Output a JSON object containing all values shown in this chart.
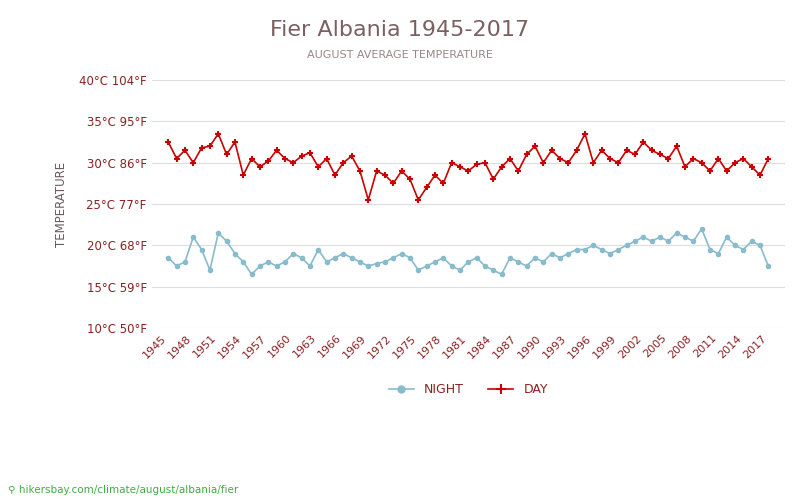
{
  "title": "Fier Albania 1945-2017",
  "subtitle": "AUGUST AVERAGE TEMPERATURE",
  "ylabel": "TEMPERATURE",
  "watermark": "hikersbay.com/climate/august/albania/fier",
  "ylim": [
    10,
    40
  ],
  "yticks_c": [
    10,
    15,
    20,
    25,
    30,
    35,
    40
  ],
  "yticks_f": [
    50,
    59,
    68,
    77,
    86,
    95,
    104
  ],
  "background_color": "#ffffff",
  "grid_color": "#dddddd",
  "title_color": "#7a6060",
  "subtitle_color": "#9a8888",
  "ylabel_color": "#6a5a5a",
  "tick_color": "#8b2222",
  "day_color": "#cc0000",
  "night_color": "#88bbcc",
  "years": [
    1945,
    1946,
    1947,
    1948,
    1949,
    1950,
    1951,
    1952,
    1953,
    1954,
    1955,
    1956,
    1957,
    1958,
    1959,
    1960,
    1961,
    1962,
    1963,
    1964,
    1965,
    1966,
    1967,
    1968,
    1969,
    1970,
    1971,
    1972,
    1973,
    1974,
    1975,
    1976,
    1977,
    1978,
    1979,
    1980,
    1981,
    1982,
    1983,
    1984,
    1985,
    1986,
    1987,
    1988,
    1989,
    1990,
    1991,
    1992,
    1993,
    1994,
    1995,
    1996,
    1997,
    1998,
    1999,
    2000,
    2001,
    2002,
    2003,
    2004,
    2005,
    2006,
    2007,
    2008,
    2009,
    2010,
    2011,
    2012,
    2013,
    2014,
    2015,
    2016,
    2017
  ],
  "day_temps": [
    32.5,
    30.5,
    31.5,
    30.0,
    31.8,
    32.0,
    33.5,
    31.0,
    32.5,
    28.5,
    30.5,
    29.5,
    30.2,
    31.5,
    30.5,
    30.0,
    30.8,
    31.2,
    29.5,
    30.5,
    28.5,
    30.0,
    30.8,
    29.0,
    25.5,
    29.0,
    28.5,
    27.5,
    29.0,
    28.0,
    25.5,
    27.0,
    28.5,
    27.5,
    30.0,
    29.5,
    29.0,
    29.8,
    30.0,
    28.0,
    29.5,
    30.5,
    29.0,
    31.0,
    32.0,
    30.0,
    31.5,
    30.5,
    30.0,
    31.5,
    33.5,
    30.0,
    31.5,
    30.5,
    30.0,
    31.5,
    31.0,
    32.5,
    31.5,
    31.0,
    30.5,
    32.0,
    29.5,
    30.5,
    30.0,
    29.0,
    30.5,
    29.0,
    30.0,
    30.5,
    29.5,
    28.5,
    30.5
  ],
  "night_temps": [
    18.5,
    17.5,
    18.0,
    21.0,
    19.5,
    17.0,
    21.5,
    20.5,
    19.0,
    18.0,
    16.5,
    17.5,
    18.0,
    17.5,
    18.0,
    19.0,
    18.5,
    17.5,
    19.5,
    18.0,
    18.5,
    19.0,
    18.5,
    18.0,
    17.5,
    17.8,
    18.0,
    18.5,
    19.0,
    18.5,
    17.0,
    17.5,
    18.0,
    18.5,
    17.5,
    17.0,
    18.0,
    18.5,
    17.5,
    17.0,
    16.5,
    18.5,
    18.0,
    17.5,
    18.5,
    18.0,
    19.0,
    18.5,
    19.0,
    19.5,
    19.5,
    20.0,
    19.5,
    19.0,
    19.5,
    20.0,
    20.5,
    21.0,
    20.5,
    21.0,
    20.5,
    21.5,
    21.0,
    20.5,
    22.0,
    19.5,
    19.0,
    21.0,
    20.0,
    19.5,
    20.5,
    20.0,
    17.5
  ]
}
